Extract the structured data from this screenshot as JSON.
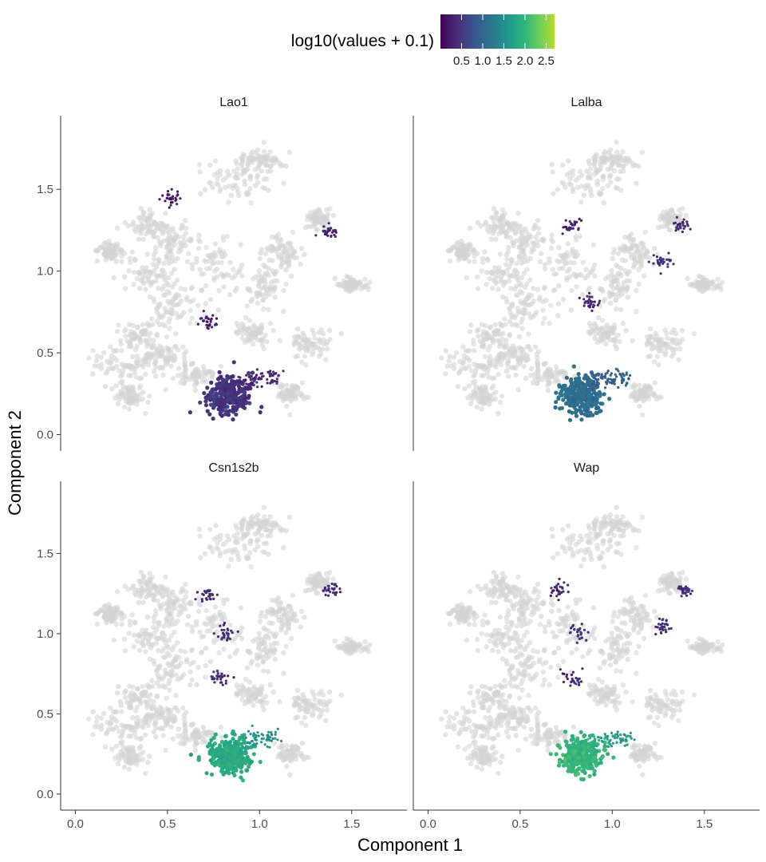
{
  "chart_data": {
    "type": "scatter",
    "xlabel": "Component 1",
    "ylabel": "Component 2",
    "xlim": [
      -0.08,
      1.8
    ],
    "ylim": [
      -0.1,
      1.95
    ],
    "x_ticks": [
      {
        "v": 0.0,
        "label": "0.0"
      },
      {
        "v": 0.5,
        "label": "0.5"
      },
      {
        "v": 1.0,
        "label": "1.0"
      },
      {
        "v": 1.5,
        "label": "1.5"
      }
    ],
    "y_ticks": [
      {
        "v": 0.0,
        "label": "0.0"
      },
      {
        "v": 0.5,
        "label": "0.5"
      },
      {
        "v": 1.0,
        "label": "1.0"
      },
      {
        "v": 1.5,
        "label": "1.5"
      }
    ],
    "legend": {
      "title": "log10(values + 0.1)",
      "placement": "top",
      "range": [
        0.0,
        2.7
      ],
      "colors": [
        "#440154",
        "#482878",
        "#3e4a89",
        "#31688e",
        "#26828e",
        "#1f9e89",
        "#35b779",
        "#6ece58",
        "#b5de2b"
      ],
      "ticks": [
        {
          "v": 0.5,
          "label": "0.5"
        },
        {
          "v": 1.0,
          "label": "1.0"
        },
        {
          "v": 1.5,
          "label": "1.5"
        },
        {
          "v": 2.0,
          "label": "2.0"
        },
        {
          "v": 2.5,
          "label": "2.5"
        }
      ]
    },
    "background_color": "#d3d3d3",
    "panels": [
      {
        "name": "Lao1",
        "clusters": [
          {
            "x": 0.83,
            "y": 0.24,
            "value": 0.45
          },
          {
            "x": 0.9,
            "y": 0.32,
            "value": 0.35
          },
          {
            "x": 0.98,
            "y": 0.34,
            "value": 0.35
          },
          {
            "x": 1.06,
            "y": 0.35,
            "value": 0.35
          },
          {
            "x": 1.38,
            "y": 1.24,
            "value": 0.3
          },
          {
            "x": 0.52,
            "y": 1.45,
            "value": 0.2
          },
          {
            "x": 0.72,
            "y": 0.7,
            "value": 0.2
          }
        ]
      },
      {
        "name": "Lalba",
        "clusters": [
          {
            "x": 0.83,
            "y": 0.24,
            "value": 1.1
          },
          {
            "x": 0.9,
            "y": 0.32,
            "value": 0.9
          },
          {
            "x": 0.98,
            "y": 0.34,
            "value": 0.9
          },
          {
            "x": 1.06,
            "y": 0.35,
            "value": 0.95
          },
          {
            "x": 1.37,
            "y": 1.28,
            "value": 0.35
          },
          {
            "x": 1.27,
            "y": 1.05,
            "value": 0.45
          },
          {
            "x": 0.88,
            "y": 0.8,
            "value": 0.3
          },
          {
            "x": 0.78,
            "y": 1.28,
            "value": 0.3
          }
        ]
      },
      {
        "name": "Csn1s2b",
        "clusters": [
          {
            "x": 0.83,
            "y": 0.24,
            "value": 1.85
          },
          {
            "x": 0.9,
            "y": 0.32,
            "value": 1.8
          },
          {
            "x": 0.98,
            "y": 0.35,
            "value": 1.6
          },
          {
            "x": 1.06,
            "y": 0.35,
            "value": 1.55
          },
          {
            "x": 0.78,
            "y": 0.72,
            "value": 0.35
          },
          {
            "x": 0.82,
            "y": 1.0,
            "value": 0.4
          },
          {
            "x": 0.72,
            "y": 1.24,
            "value": 0.35
          },
          {
            "x": 1.39,
            "y": 1.27,
            "value": 0.35
          }
        ]
      },
      {
        "name": "Wap",
        "clusters": [
          {
            "x": 0.83,
            "y": 0.24,
            "value": 2.0
          },
          {
            "x": 0.9,
            "y": 0.32,
            "value": 1.9
          },
          {
            "x": 0.98,
            "y": 0.35,
            "value": 1.7
          },
          {
            "x": 1.06,
            "y": 0.35,
            "value": 1.65
          },
          {
            "x": 0.78,
            "y": 0.72,
            "value": 0.35
          },
          {
            "x": 0.82,
            "y": 1.0,
            "value": 0.4
          },
          {
            "x": 0.7,
            "y": 1.28,
            "value": 0.35
          },
          {
            "x": 1.27,
            "y": 1.05,
            "value": 0.35
          },
          {
            "x": 1.39,
            "y": 1.27,
            "value": 0.35
          }
        ]
      }
    ]
  }
}
